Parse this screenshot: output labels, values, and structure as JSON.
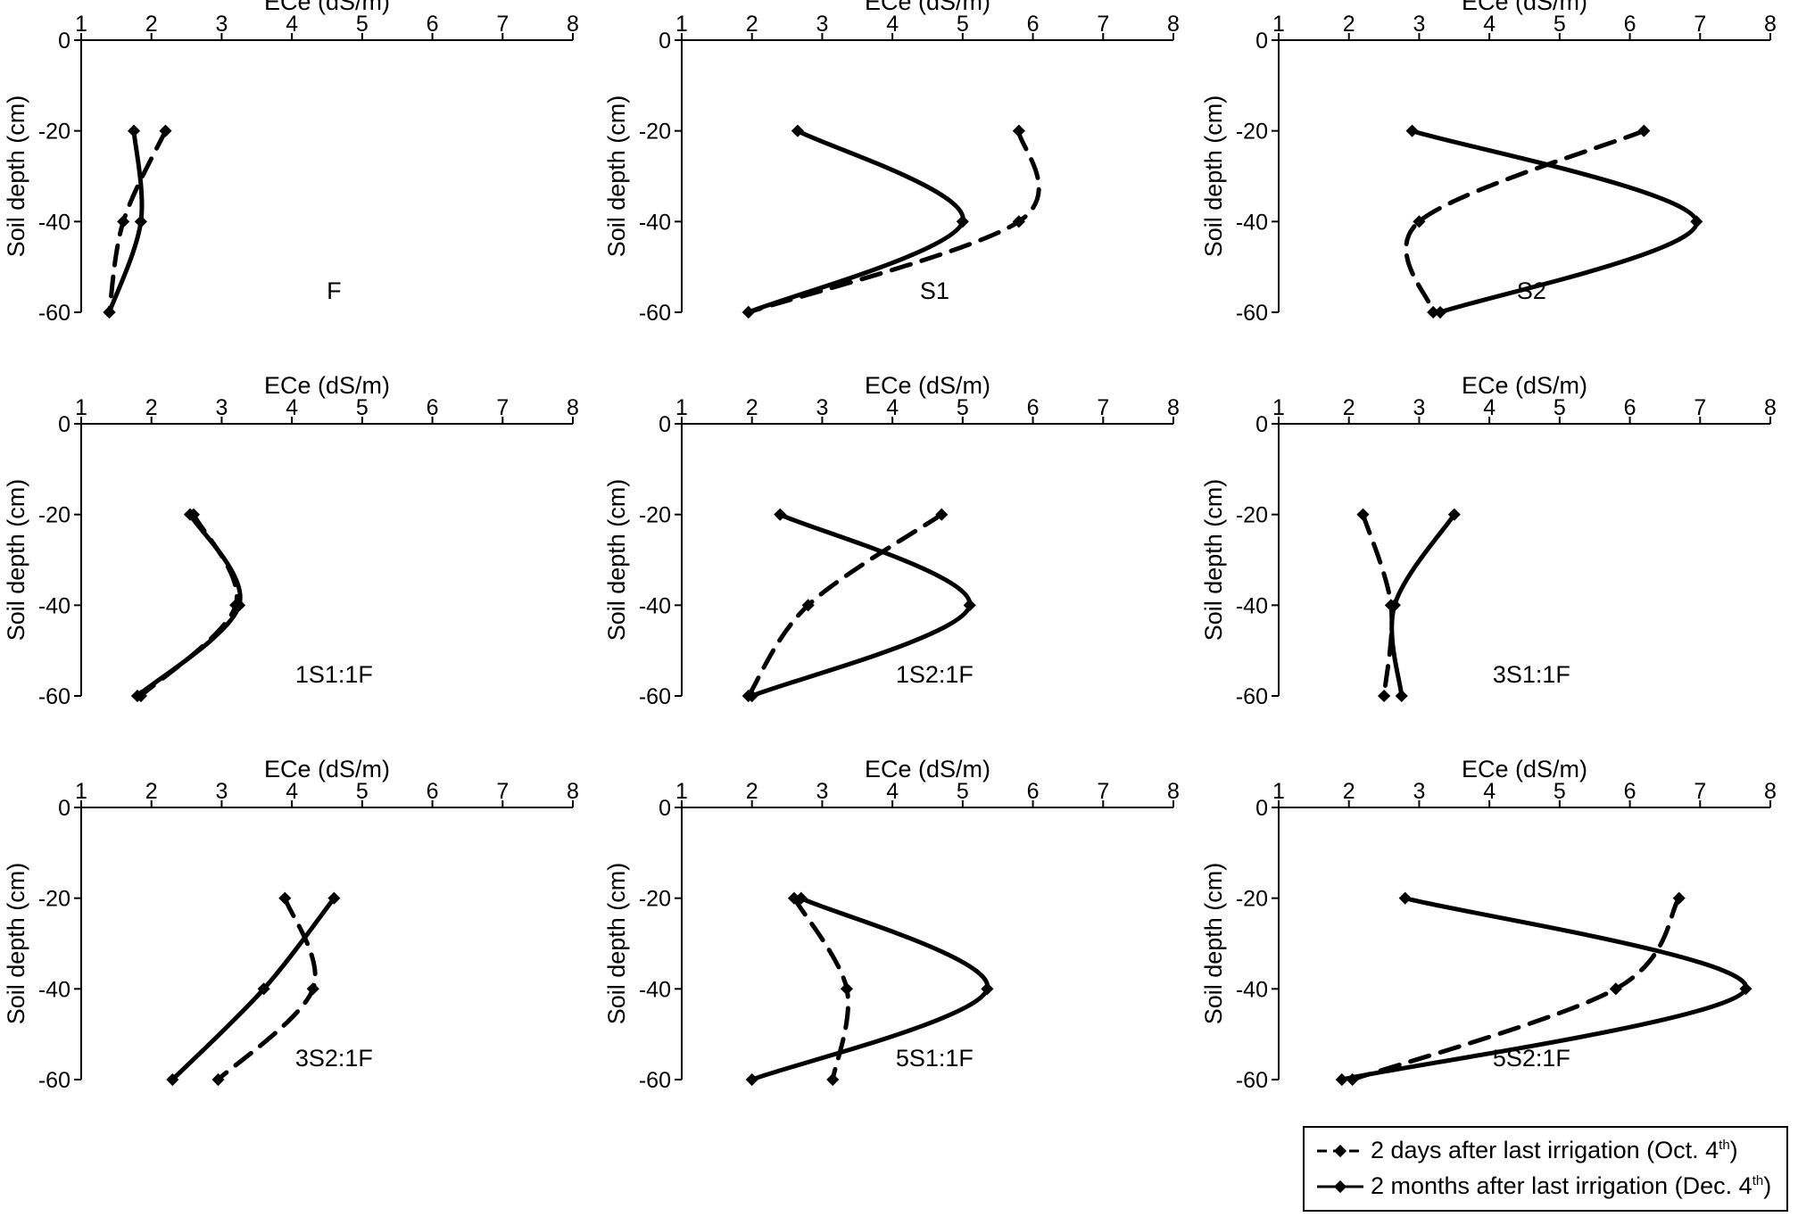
{
  "chart_data": [
    {
      "type": "line",
      "panel_label": "F",
      "xlabel": "ECe (dS/m)",
      "ylabel": "Soil depth (cm)",
      "xlim": [
        1,
        8
      ],
      "ylim": [
        -60,
        0
      ],
      "x_ticks": [
        "1",
        "2",
        "3",
        "4",
        "5",
        "6",
        "7",
        "8"
      ],
      "y_ticks": [
        "0",
        "-20",
        "-40",
        "-60"
      ],
      "series": [
        {
          "key": "oct",
          "points": [
            [
              2.2,
              -20
            ],
            [
              1.6,
              -40
            ],
            [
              1.4,
              -60
            ]
          ]
        },
        {
          "key": "dec",
          "points": [
            [
              1.75,
              -20
            ],
            [
              1.85,
              -40
            ],
            [
              1.4,
              -60
            ]
          ]
        }
      ]
    },
    {
      "type": "line",
      "panel_label": "S1",
      "xlabel": "ECe (dS/m)",
      "ylabel": "Soil depth (cm)",
      "xlim": [
        1,
        8
      ],
      "ylim": [
        -60,
        0
      ],
      "x_ticks": [
        "1",
        "2",
        "3",
        "4",
        "5",
        "6",
        "7",
        "8"
      ],
      "y_ticks": [
        "0",
        "-20",
        "-40",
        "-60"
      ],
      "series": [
        {
          "key": "oct",
          "points": [
            [
              5.8,
              -20
            ],
            [
              5.8,
              -40
            ],
            [
              1.95,
              -60
            ]
          ]
        },
        {
          "key": "dec",
          "points": [
            [
              2.65,
              -20
            ],
            [
              5.0,
              -40
            ],
            [
              1.95,
              -60
            ]
          ]
        }
      ]
    },
    {
      "type": "line",
      "panel_label": "S2",
      "xlabel": "ECe (dS/m)",
      "ylabel": "Soil depth (cm)",
      "xlim": [
        1,
        8
      ],
      "ylim": [
        -60,
        0
      ],
      "x_ticks": [
        "1",
        "2",
        "3",
        "4",
        "5",
        "6",
        "7",
        "8"
      ],
      "y_ticks": [
        "0",
        "-20",
        "-40",
        "-60"
      ],
      "series": [
        {
          "key": "oct",
          "points": [
            [
              6.2,
              -20
            ],
            [
              3.0,
              -40
            ],
            [
              3.2,
              -60
            ]
          ]
        },
        {
          "key": "dec",
          "points": [
            [
              2.9,
              -20
            ],
            [
              6.95,
              -40
            ],
            [
              3.3,
              -60
            ]
          ]
        }
      ]
    },
    {
      "type": "line",
      "panel_label": "1S1:1F",
      "xlabel": "ECe (dS/m)",
      "ylabel": "Soil depth (cm)",
      "xlim": [
        1,
        8
      ],
      "ylim": [
        -60,
        0
      ],
      "x_ticks": [
        "1",
        "2",
        "3",
        "4",
        "5",
        "6",
        "7",
        "8"
      ],
      "y_ticks": [
        "0",
        "-20",
        "-40",
        "-60"
      ],
      "series": [
        {
          "key": "oct",
          "points": [
            [
              2.6,
              -20
            ],
            [
              3.2,
              -40
            ],
            [
              1.85,
              -60
            ]
          ]
        },
        {
          "key": "dec",
          "points": [
            [
              2.55,
              -20
            ],
            [
              3.25,
              -40
            ],
            [
              1.8,
              -60
            ]
          ]
        }
      ]
    },
    {
      "type": "line",
      "panel_label": "1S2:1F",
      "xlabel": "ECe (dS/m)",
      "ylabel": "Soil depth (cm)",
      "xlim": [
        1,
        8
      ],
      "ylim": [
        -60,
        0
      ],
      "x_ticks": [
        "1",
        "2",
        "3",
        "4",
        "5",
        "6",
        "7",
        "8"
      ],
      "y_ticks": [
        "0",
        "-20",
        "-40",
        "-60"
      ],
      "series": [
        {
          "key": "oct",
          "points": [
            [
              4.7,
              -20
            ],
            [
              2.8,
              -40
            ],
            [
              1.95,
              -60
            ]
          ]
        },
        {
          "key": "dec",
          "points": [
            [
              2.4,
              -20
            ],
            [
              5.1,
              -40
            ],
            [
              2.0,
              -60
            ]
          ]
        }
      ]
    },
    {
      "type": "line",
      "panel_label": "3S1:1F",
      "xlabel": "ECe (dS/m)",
      "ylabel": "Soil depth (cm)",
      "xlim": [
        1,
        8
      ],
      "ylim": [
        -60,
        0
      ],
      "x_ticks": [
        "1",
        "2",
        "3",
        "4",
        "5",
        "6",
        "7",
        "8"
      ],
      "y_ticks": [
        "0",
        "-20",
        "-40",
        "-60"
      ],
      "series": [
        {
          "key": "oct",
          "points": [
            [
              2.2,
              -20
            ],
            [
              2.6,
              -40
            ],
            [
              2.5,
              -60
            ]
          ]
        },
        {
          "key": "dec",
          "points": [
            [
              3.5,
              -20
            ],
            [
              2.65,
              -40
            ],
            [
              2.75,
              -60
            ]
          ]
        }
      ]
    },
    {
      "type": "line",
      "panel_label": "3S2:1F",
      "xlabel": "ECe (dS/m)",
      "ylabel": "Soil depth (cm)",
      "xlim": [
        1,
        8
      ],
      "ylim": [
        -60,
        0
      ],
      "x_ticks": [
        "1",
        "2",
        "3",
        "4",
        "5",
        "6",
        "7",
        "8"
      ],
      "y_ticks": [
        "0",
        "-20",
        "-40",
        "-60"
      ],
      "series": [
        {
          "key": "oct",
          "points": [
            [
              3.9,
              -20
            ],
            [
              4.3,
              -40
            ],
            [
              2.95,
              -60
            ]
          ]
        },
        {
          "key": "dec",
          "points": [
            [
              4.6,
              -20
            ],
            [
              3.6,
              -40
            ],
            [
              2.3,
              -60
            ]
          ]
        }
      ]
    },
    {
      "type": "line",
      "panel_label": "5S1:1F",
      "xlabel": "ECe (dS/m)",
      "ylabel": "Soil depth (cm)",
      "xlim": [
        1,
        8
      ],
      "ylim": [
        -60,
        0
      ],
      "x_ticks": [
        "1",
        "2",
        "3",
        "4",
        "5",
        "6",
        "7",
        "8"
      ],
      "y_ticks": [
        "0",
        "-20",
        "-40",
        "-60"
      ],
      "series": [
        {
          "key": "oct",
          "points": [
            [
              2.6,
              -20
            ],
            [
              3.35,
              -40
            ],
            [
              3.15,
              -60
            ]
          ]
        },
        {
          "key": "dec",
          "points": [
            [
              2.7,
              -20
            ],
            [
              5.35,
              -40
            ],
            [
              2.0,
              -60
            ]
          ]
        }
      ]
    },
    {
      "type": "line",
      "panel_label": "5S2:1F",
      "xlabel": "ECe (dS/m)",
      "ylabel": "Soil depth (cm)",
      "xlim": [
        1,
        8
      ],
      "ylim": [
        -60,
        0
      ],
      "x_ticks": [
        "1",
        "2",
        "3",
        "4",
        "5",
        "6",
        "7",
        "8"
      ],
      "y_ticks": [
        "0",
        "-20",
        "-40",
        "-60"
      ],
      "series": [
        {
          "key": "oct",
          "points": [
            [
              6.7,
              -20
            ],
            [
              5.8,
              -40
            ],
            [
              2.05,
              -60
            ]
          ]
        },
        {
          "key": "dec",
          "points": [
            [
              2.8,
              -20
            ],
            [
              7.65,
              -40
            ],
            [
              1.9,
              -60
            ]
          ]
        }
      ]
    }
  ],
  "legend": {
    "oct": {
      "text": "2 days after last irrigation (Oct. 4",
      "sup": "th",
      "tail": ")",
      "style": "dashed"
    },
    "dec": {
      "text": "2 months after last irrigation (Dec. 4",
      "sup": "th",
      "tail": ")",
      "style": "solid"
    }
  },
  "colors": {
    "line": "#000000",
    "background": "#ffffff"
  }
}
